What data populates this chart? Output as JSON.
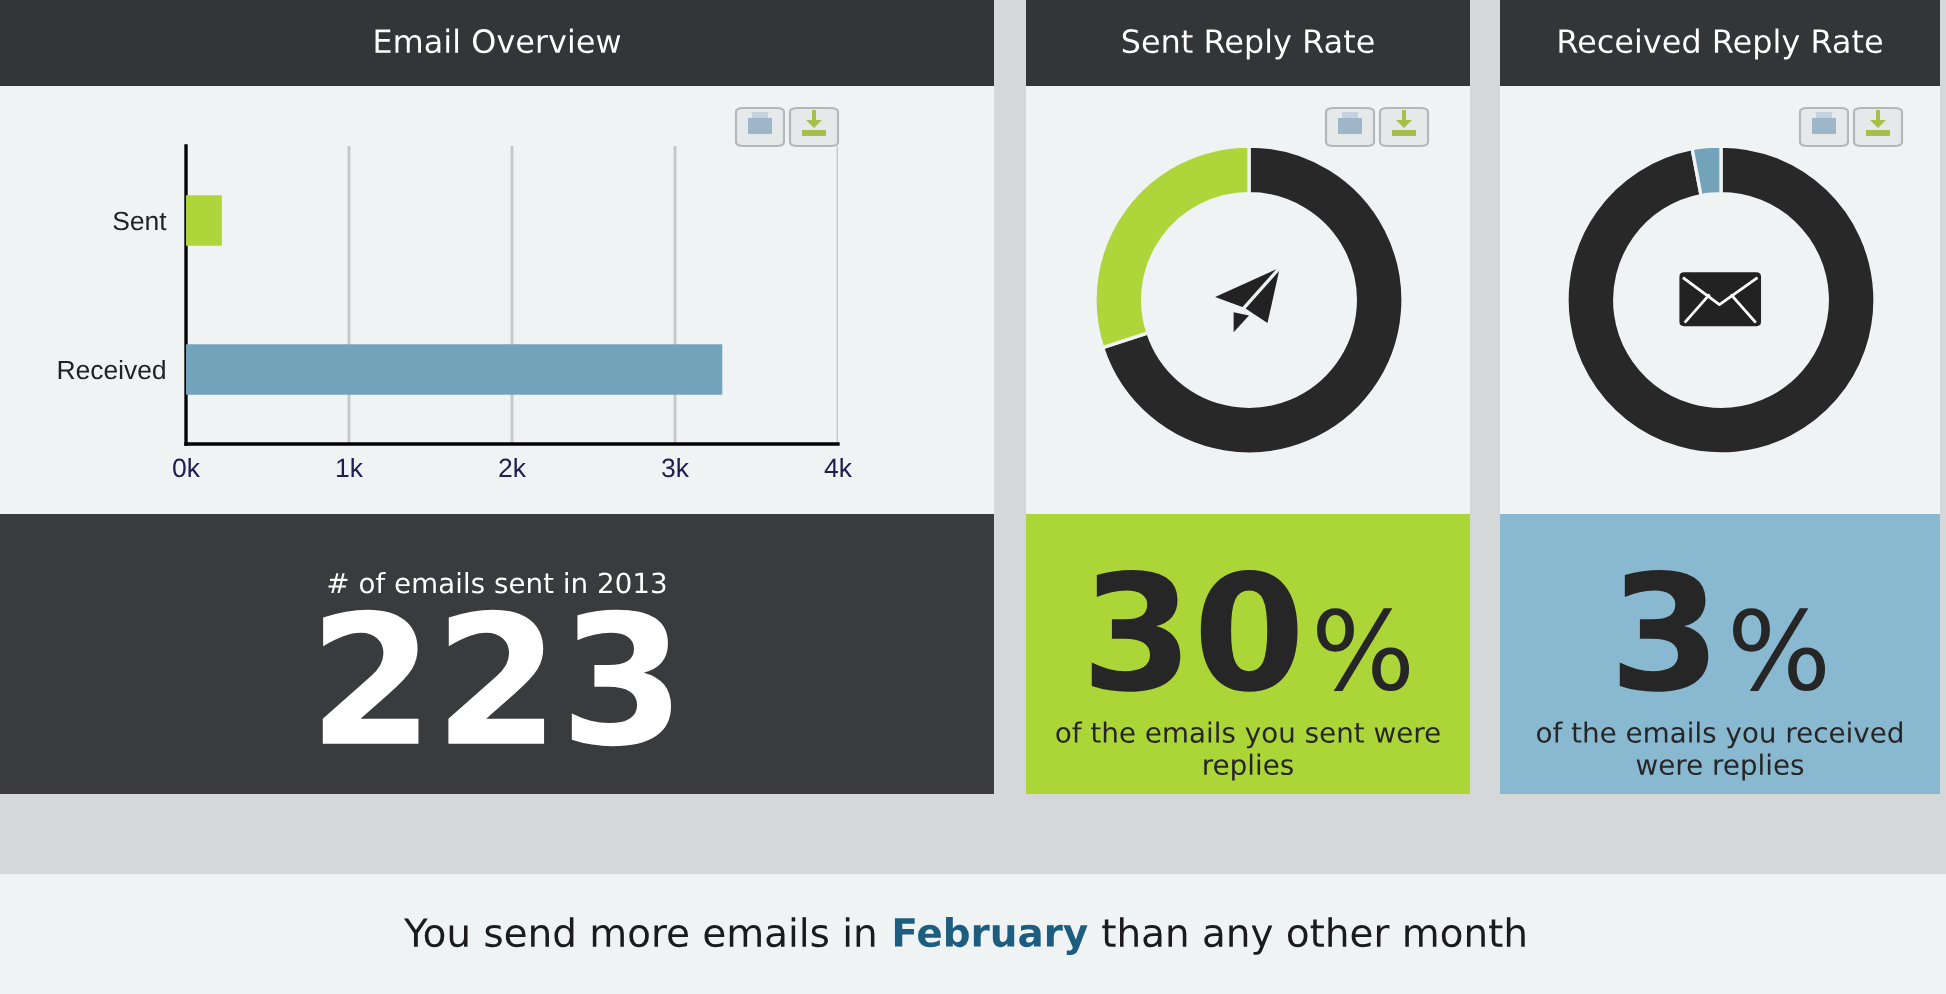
{
  "chart_data": [
    {
      "type": "bar",
      "title": "Email Overview",
      "orientation": "horizontal",
      "categories": [
        "Sent",
        "Received"
      ],
      "values": [
        220,
        3290
      ],
      "colors": [
        "#aed53a",
        "#72a3ba"
      ],
      "xlim": [
        0,
        4000
      ],
      "xticks": [
        {
          "value": 0,
          "label": "0k"
        },
        {
          "value": 1000,
          "label": "1k"
        },
        {
          "value": 2000,
          "label": "2k"
        },
        {
          "value": 3000,
          "label": "3k"
        },
        {
          "value": 4000,
          "label": "4k"
        }
      ],
      "grid": "x",
      "annotations": [
        "# of emails sent in 2013",
        "223"
      ]
    },
    {
      "type": "donut",
      "title": "Sent Reply Rate",
      "categories": [
        null,
        null
      ],
      "values": [
        70,
        30
      ],
      "colors": [
        "#282828",
        "#aed53a"
      ],
      "annotations": [
        "30%",
        "of the emails you sent were replies"
      ]
    },
    {
      "type": "donut",
      "title": "Received Reply Rate",
      "categories": [
        null,
        null
      ],
      "values": [
        97,
        3
      ],
      "colors": [
        "#282828",
        "#72a3ba"
      ],
      "annotations": [
        "3%",
        "of the emails you received were replies"
      ]
    },
    {
      "type": "other",
      "annotations": [
        "You send more emails in",
        "February",
        "than any other month"
      ]
    }
  ]
}
